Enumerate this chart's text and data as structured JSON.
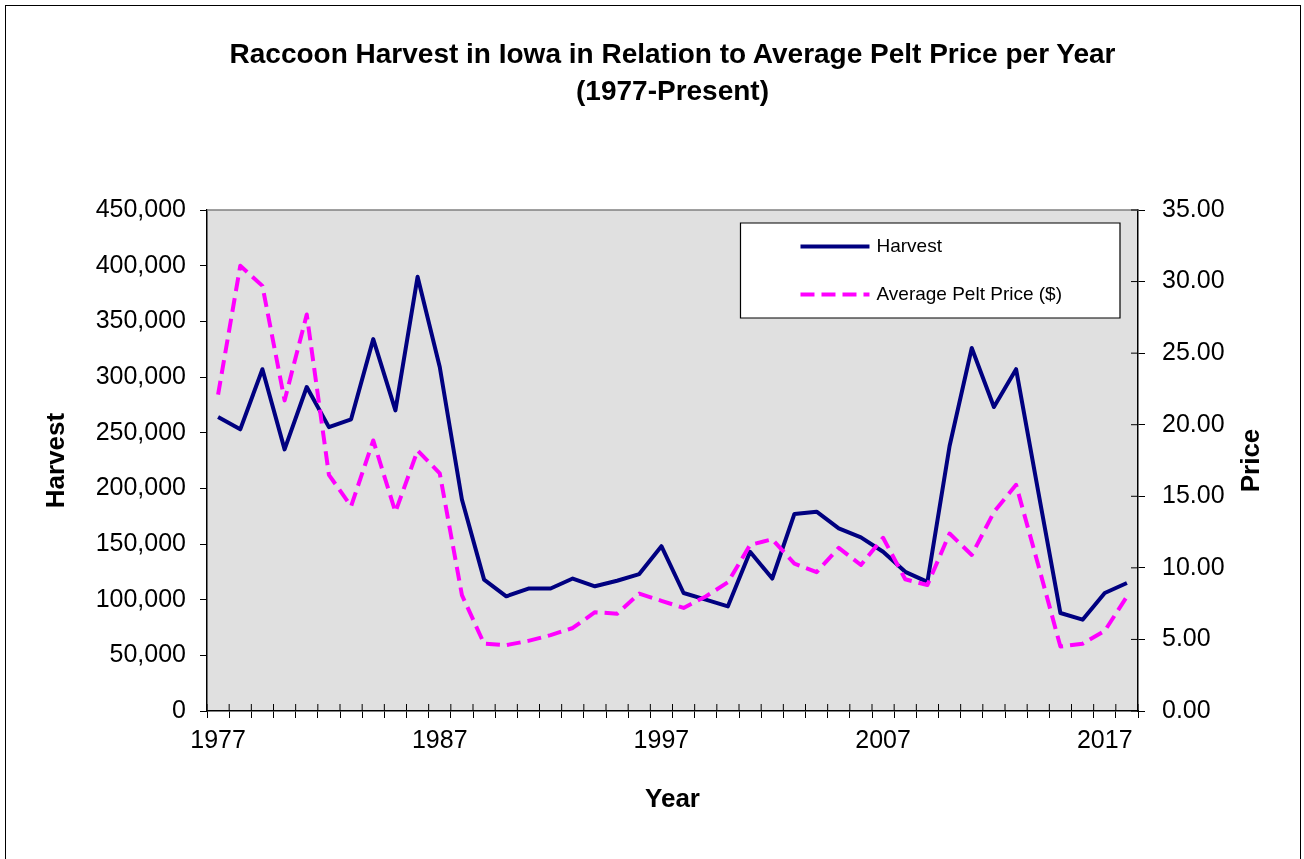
{
  "chart_data": {
    "type": "line",
    "title": "Raccoon Harvest in Iowa in Relation to Average Pelt Price per Year",
    "subtitle": "(1977-Present)",
    "xlabel": "Year",
    "ylabel": "Harvest",
    "y2label": "Price",
    "categories": [
      "1977",
      null,
      null,
      null,
      null,
      null,
      null,
      null,
      null,
      null,
      "1987",
      null,
      null,
      null,
      null,
      null,
      null,
      null,
      null,
      null,
      "1997",
      null,
      null,
      null,
      null,
      null,
      null,
      null,
      null,
      null,
      "2007",
      null,
      null,
      null,
      null,
      null,
      null,
      null,
      null,
      null,
      "2017",
      null
    ],
    "series": [
      {
        "name": "Harvest",
        "color": "#000080",
        "line_style": "solid",
        "values": [
          264000,
          253000,
          307000,
          235000,
          291000,
          255000,
          262000,
          334000,
          270000,
          390000,
          309000,
          190000,
          118000,
          103000,
          110000,
          110000,
          119000,
          112000,
          117000,
          123000,
          148000,
          106000,
          100000,
          94000,
          143000,
          119000,
          177000,
          179000,
          164000,
          156000,
          143000,
          125000,
          116000,
          238000,
          326000,
          273000,
          307000,
          197000,
          88000,
          82000,
          106000,
          115000
        ]
      },
      {
        "name": "Average Pelt Price ($)",
        "color": "#ff00ff",
        "line_style": "dashed",
        "axis": "y2",
        "values": [
          22.1,
          31.1,
          29.7,
          21.7,
          27.7,
          16.5,
          14.3,
          18.9,
          13.9,
          18.2,
          16.6,
          8.1,
          4.7,
          4.6,
          4.9,
          5.3,
          5.8,
          6.9,
          6.8,
          8.2,
          7.7,
          7.2,
          8.0,
          9.0,
          11.6,
          12.0,
          10.3,
          9.7,
          11.4,
          10.2,
          12.1,
          9.2,
          8.8,
          12.4,
          10.9,
          13.9,
          15.8,
          10.2,
          4.5,
          4.7,
          5.6,
          8.0
        ]
      }
    ],
    "ylim": [
      0,
      450000
    ],
    "yticks": [
      0,
      {
        "value": 50000,
        "label": "50,000"
      },
      {
        "value": 100000,
        "label": "100,000"
      },
      {
        "value": 150000,
        "label": "150,000"
      },
      {
        "value": 200000,
        "label": "200,000"
      },
      {
        "value": 250000,
        "label": "250,000"
      },
      {
        "value": 300000,
        "label": "300,000"
      },
      {
        "value": 350000,
        "label": "350,000"
      },
      {
        "value": 400000,
        "label": "400,000"
      },
      {
        "value": 450000,
        "label": "450,000"
      }
    ],
    "y2lim": [
      0,
      35
    ],
    "y2ticks": [
      {
        "value": 0,
        "label": "0.00"
      },
      {
        "value": 5,
        "label": "5.00"
      },
      {
        "value": 10,
        "label": "10.00"
      },
      {
        "value": 15,
        "label": "15.00"
      },
      {
        "value": 20,
        "label": "20.00"
      },
      {
        "value": 25,
        "label": "25.00"
      },
      {
        "value": 30,
        "label": "30.00"
      },
      {
        "value": 35,
        "label": "35.00"
      }
    ],
    "grid": false,
    "legend": "top right",
    "marker": "none"
  }
}
